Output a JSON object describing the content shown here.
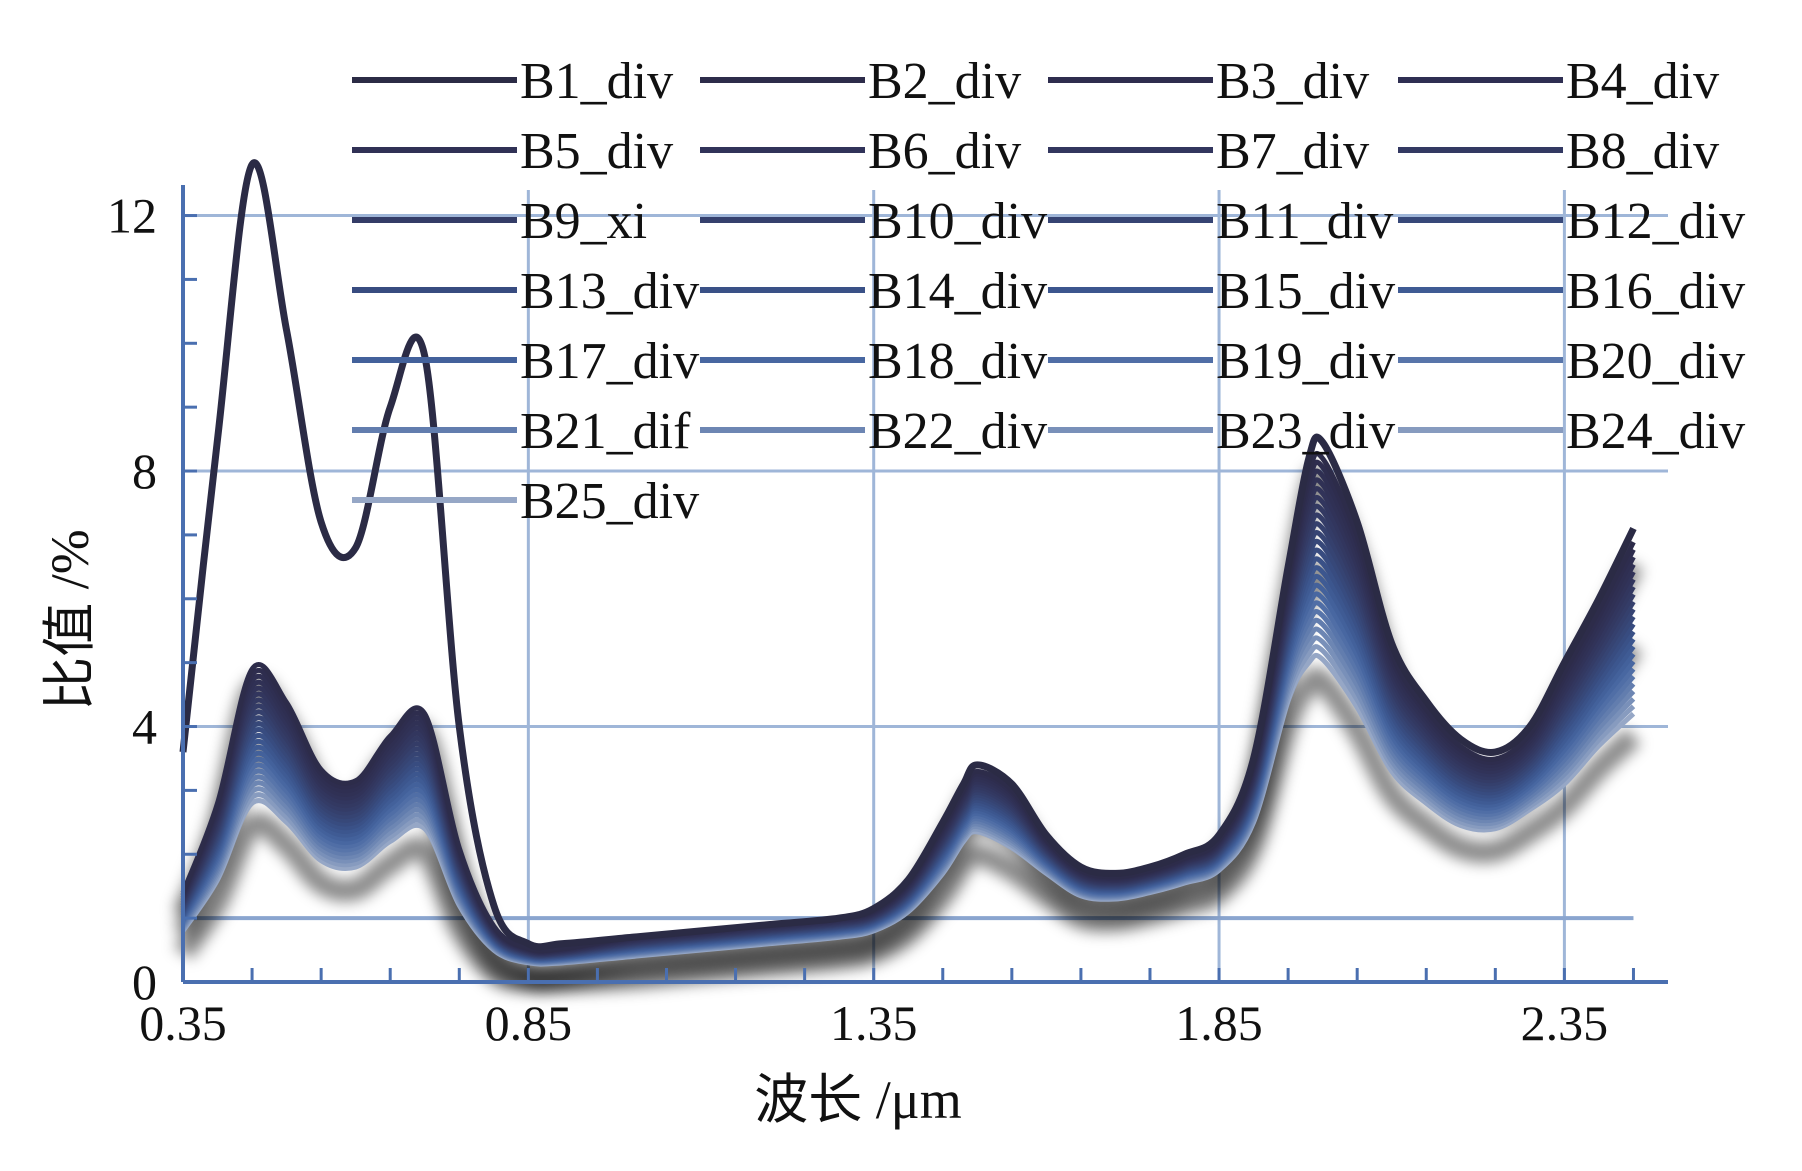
{
  "chart_data": {
    "type": "line",
    "title": "",
    "xlabel": "波长 /μm",
    "ylabel": "比值 /%",
    "xlim": [
      0.35,
      2.5
    ],
    "ylim": [
      0,
      12.4
    ],
    "x_ticks": [
      0.35,
      0.85,
      1.35,
      1.85,
      2.35
    ],
    "x_tick_labels": [
      "0.35",
      "0.85",
      "1.35",
      "1.85",
      "2.35"
    ],
    "y_ticks": [
      0,
      4,
      8,
      12
    ],
    "y_tick_labels": [
      "0",
      "4",
      "8",
      "12"
    ],
    "grid": true,
    "reference_line": {
      "y": 1.0
    },
    "legend": {
      "placement": "top",
      "columns": 4,
      "entries": [
        {
          "label": "B1_div",
          "color": "#2b2b45"
        },
        {
          "label": "B2_div",
          "color": "#2d2c4a"
        },
        {
          "label": "B3_div",
          "color": "#2e2d4e"
        },
        {
          "label": "B4_div",
          "color": "#2f2f52"
        },
        {
          "label": "B5_div",
          "color": "#303155"
        },
        {
          "label": "B6_div",
          "color": "#313359"
        },
        {
          "label": "B7_div",
          "color": "#32365e"
        },
        {
          "label": "B8_div",
          "color": "#333962"
        },
        {
          "label": "B9_xi",
          "color": "#343c67"
        },
        {
          "label": "B10_div",
          "color": "#35406d"
        },
        {
          "label": "B11_div",
          "color": "#364473"
        },
        {
          "label": "B12_div",
          "color": "#374879"
        },
        {
          "label": "B13_div",
          "color": "#384c80"
        },
        {
          "label": "B14_div",
          "color": "#3a5187"
        },
        {
          "label": "B15_div",
          "color": "#3c568e"
        },
        {
          "label": "B16_div",
          "color": "#3f5b94"
        },
        {
          "label": "B17_div",
          "color": "#43619b"
        },
        {
          "label": "B18_div",
          "color": "#4867a1"
        },
        {
          "label": "B19_div",
          "color": "#506ea6"
        },
        {
          "label": "B20_div",
          "color": "#5875aa"
        },
        {
          "label": "B21_dif",
          "color": "#627dae"
        },
        {
          "label": "B22_div",
          "color": "#6d86b3"
        },
        {
          "label": "B23_div",
          "color": "#7990b9"
        },
        {
          "label": "B24_div",
          "color": "#879bbf"
        },
        {
          "label": "B25_div",
          "color": "#96a7c6"
        }
      ]
    },
    "x": [
      0.35,
      0.4,
      0.45,
      0.5,
      0.55,
      0.6,
      0.65,
      0.7,
      0.75,
      0.8,
      0.85,
      0.9,
      1.0,
      1.1,
      1.2,
      1.3,
      1.35,
      1.4,
      1.45,
      1.48,
      1.5,
      1.55,
      1.6,
      1.65,
      1.7,
      1.75,
      1.8,
      1.85,
      1.9,
      1.95,
      1.98,
      2.0,
      2.05,
      2.1,
      2.15,
      2.2,
      2.25,
      2.3,
      2.35,
      2.4,
      2.45
    ],
    "series_upper": {
      "name": "B1_div",
      "values": [
        3.6,
        8.5,
        12.8,
        10.2,
        7.2,
        6.8,
        9.0,
        9.8,
        4.0,
        1.2,
        0.6,
        0.6,
        0.7,
        0.8,
        0.9,
        1.0,
        1.15,
        1.6,
        2.5,
        3.1,
        3.4,
        3.1,
        2.3,
        1.8,
        1.7,
        1.8,
        2.0,
        2.3,
        3.5,
        6.5,
        8.2,
        8.45,
        7.2,
        5.3,
        4.4,
        3.8,
        3.6,
        4.0,
        5.0,
        6.0,
        7.1
      ]
    },
    "series_lower": {
      "name": "B25_div",
      "values": [
        0.8,
        1.6,
        2.8,
        2.5,
        1.9,
        1.8,
        2.2,
        2.4,
        1.2,
        0.5,
        0.3,
        0.3,
        0.4,
        0.5,
        0.6,
        0.7,
        0.8,
        1.1,
        1.7,
        2.2,
        2.35,
        2.1,
        1.7,
        1.35,
        1.3,
        1.4,
        1.55,
        1.75,
        2.5,
        4.4,
        5.0,
        5.05,
        4.3,
        3.3,
        2.8,
        2.45,
        2.4,
        2.7,
        3.1,
        3.7,
        4.2
      ]
    }
  }
}
